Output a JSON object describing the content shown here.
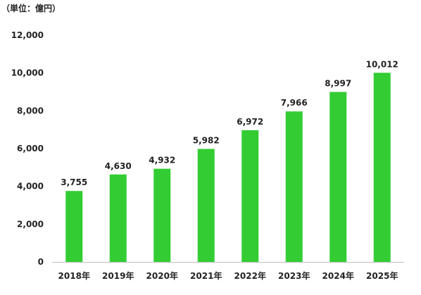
{
  "chart_data": {
    "type": "bar",
    "unit_label": "（単位：億円）",
    "categories": [
      "2018年",
      "2019年",
      "2020年",
      "2021年",
      "2022年",
      "2023年",
      "2024年",
      "2025年"
    ],
    "values": [
      3755,
      4630,
      4932,
      5982,
      6972,
      7966,
      8997,
      10012
    ],
    "data_labels": [
      "3,755",
      "4,630",
      "4,932",
      "5,982",
      "6,972",
      "7,966",
      "8,997",
      "10,012"
    ],
    "yticks": [
      0,
      2000,
      4000,
      6000,
      8000,
      10000,
      12000
    ],
    "ytick_labels": [
      "0",
      "2,000",
      "4,000",
      "6,000",
      "8,000",
      "10,000",
      "12,000"
    ],
    "ylim": [
      0,
      12000
    ],
    "grid": false,
    "legend": "none",
    "bar_color": "#33cc33",
    "axis_color": "#bfbfbf"
  }
}
